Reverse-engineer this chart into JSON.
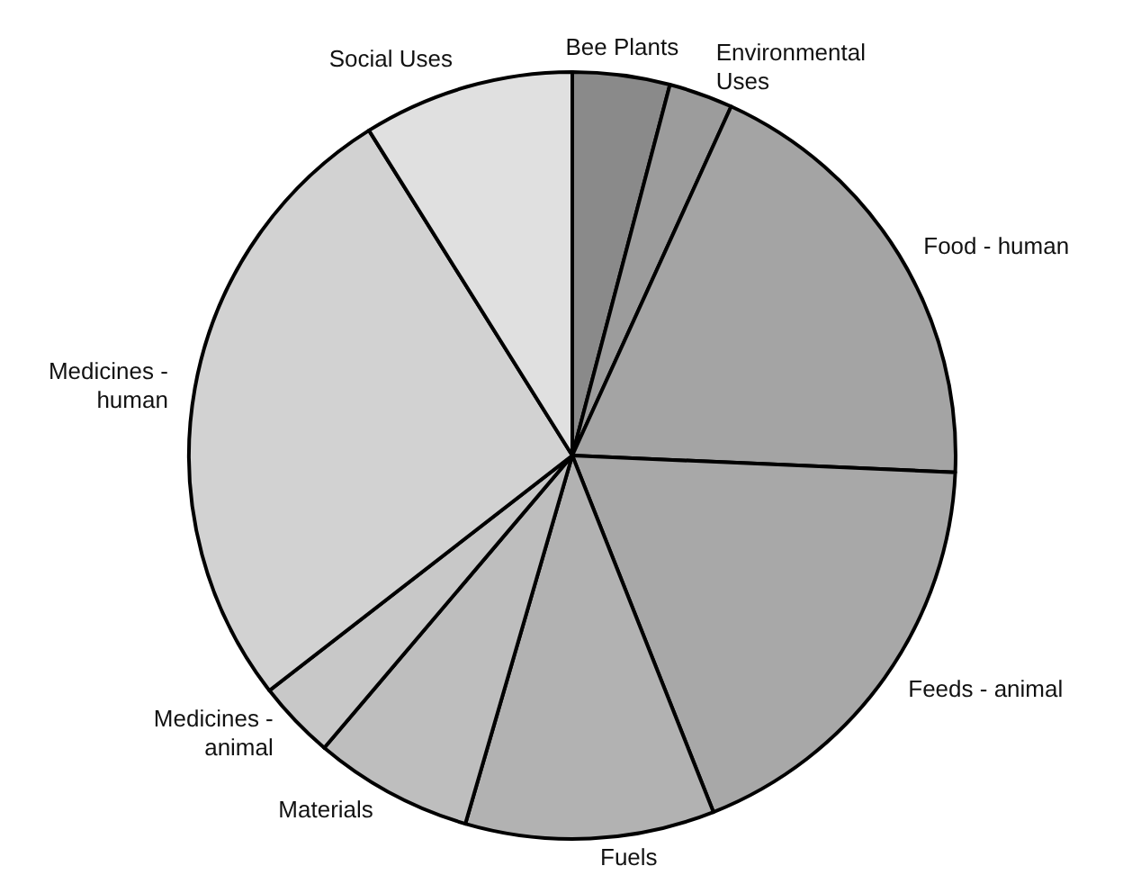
{
  "chart_data": {
    "type": "pie",
    "categories": [
      "Bee Plants",
      "Environmental\nUses",
      "Food - human",
      "Feeds - animal",
      "Fuels",
      "Materials",
      "Medicines -\nanimal",
      "Medicines -\nhuman",
      "Social Uses"
    ],
    "values": [
      4.1,
      2.7,
      18.9,
      18.3,
      10.5,
      6.7,
      3.3,
      26.6,
      8.9
    ],
    "colors": [
      "#8a8a8a",
      "#9c9c9c",
      "#a4a4a4",
      "#a8a8a8",
      "#b2b2b2",
      "#bebebe",
      "#c8c8c8",
      "#d2d2d2",
      "#e0e0e0"
    ],
    "legend": false
  }
}
